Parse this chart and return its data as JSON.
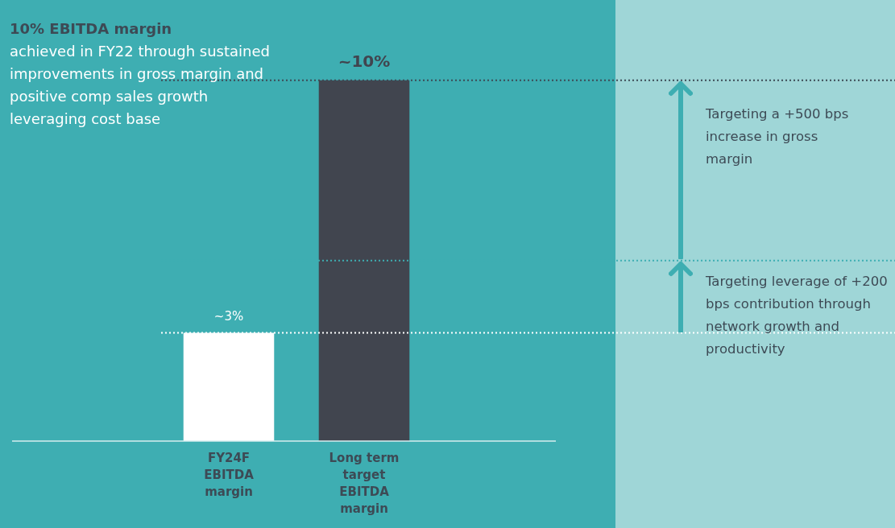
{
  "chart_data": {
    "type": "bar",
    "categories": [
      "FY24F EBITDA margin",
      "Long term target EBITDA margin"
    ],
    "values": [
      3,
      10
    ],
    "colors": [
      "#ffffff",
      "#41454f"
    ],
    "value_labels": [
      "~3%",
      "~10%"
    ],
    "tick_labels": "x",
    "grid": false,
    "legend": false,
    "ref_lines": [
      {
        "axis": "y",
        "value": 10,
        "color": "#3d4a55",
        "line_style": "dotted"
      },
      {
        "axis": "y",
        "value": 5,
        "color": "#3eaeb2",
        "line_style": "dotted"
      },
      {
        "axis": "y",
        "value": 3,
        "color": "#ffffff",
        "line_style": "dotted"
      }
    ],
    "annotations": [
      "10% EBITDA margin",
      "achieved in FY22 through sustained improvements in gross margin and positive comp sales growth leveraging cost base",
      "Targeting a +500 bps increase in gross margin",
      "Targeting leverage of +200 bps contribution through network growth and productivity"
    ]
  }
}
